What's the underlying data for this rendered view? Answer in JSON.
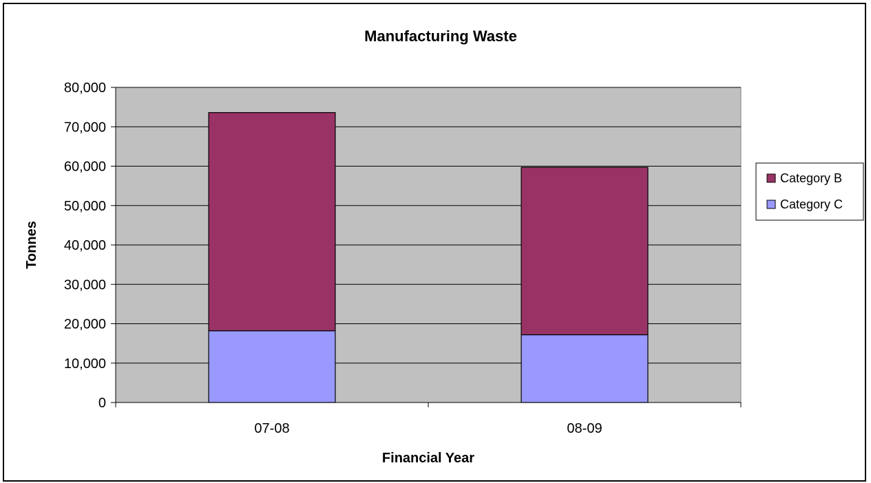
{
  "chart_data": {
    "type": "bar",
    "stacked": true,
    "title": "Manufacturing Waste",
    "xlabel": "Financial Year",
    "ylabel": "Tonnes",
    "categories": [
      "07-08",
      "08-09"
    ],
    "series": [
      {
        "name": "Category C",
        "values": [
          18200,
          17200
        ],
        "color": "#9999ff"
      },
      {
        "name": "Category B",
        "values": [
          55400,
          42500
        ],
        "color": "#993366"
      }
    ],
    "ylim": [
      0,
      80000
    ],
    "yticks": [
      "0",
      "10,000",
      "20,000",
      "30,000",
      "40,000",
      "50,000",
      "60,000",
      "70,000",
      "80,000"
    ],
    "grid": true,
    "plot_background": "#c0c0c0",
    "legend": {
      "placement": "right",
      "order": [
        "Category B",
        "Category C"
      ]
    }
  }
}
